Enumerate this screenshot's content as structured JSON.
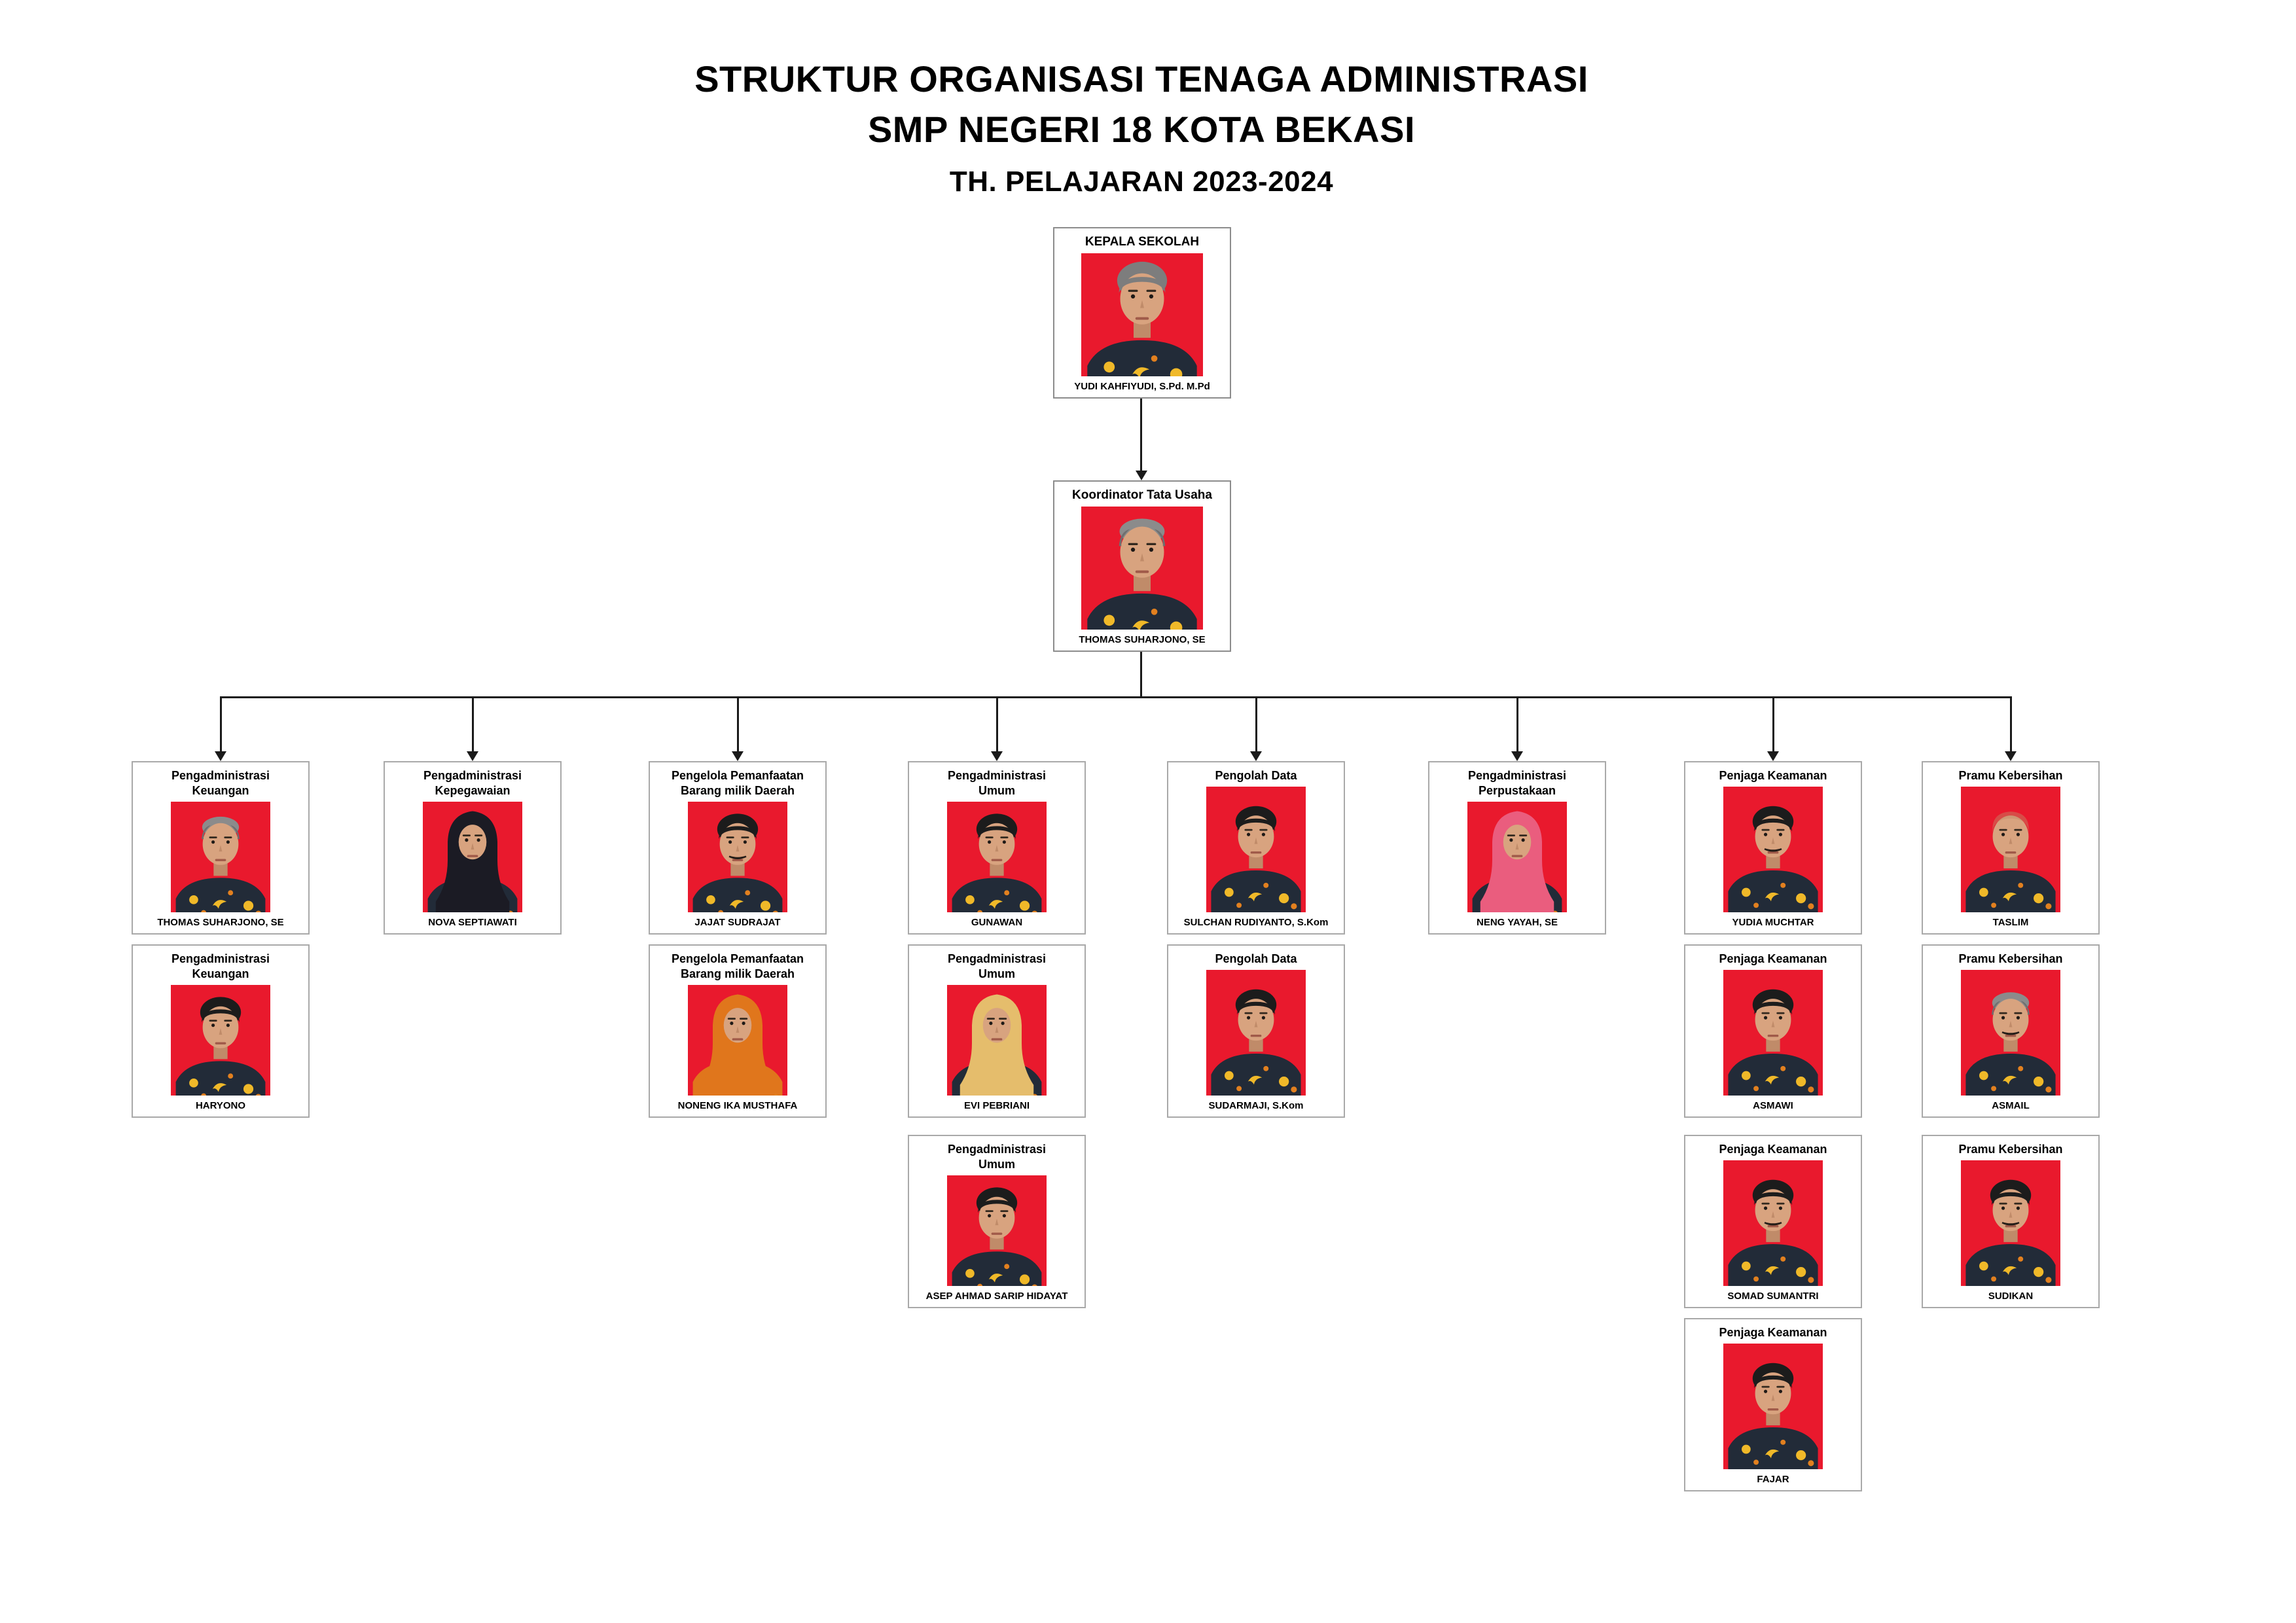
{
  "title": {
    "line1": "STRUKTUR ORGANISASI TENAGA ADMINISTRASI",
    "line2": "SMP NEGERI 18 KOTA BEKASI",
    "line3": "TH. PELAJARAN 2023-2024"
  },
  "colors": {
    "photo_bg": "#e9192d",
    "batik_shirt": "#222b38",
    "batik_accent": "#f0b929",
    "batik_accent2": "#e2801f",
    "connector": "#1a1a1a",
    "node_border": "#a9a9a9"
  },
  "org": {
    "kepala": {
      "role": "KEPALA SEKOLAH",
      "name": "YUDI KAHFIYUDI, S.Pd. M.Pd",
      "avatar": "male-gray"
    },
    "koordinator": {
      "role": "Koordinator Tata Usaha",
      "name": "THOMAS SUHARJONO, SE",
      "avatar": "male-balding"
    },
    "columns": [
      {
        "members": [
          {
            "role": "Pengadministrasi\nKeuangan",
            "name": "THOMAS SUHARJONO, SE",
            "avatar": "male-balding"
          },
          {
            "role": "Pengadministrasi\nKeuangan",
            "name": "HARYONO",
            "avatar": "male-black"
          }
        ]
      },
      {
        "members": [
          {
            "role": "Pengadministrasi\nKepegawaian",
            "name": "NOVA SEPTIAWATI",
            "avatar": "hijab-black"
          }
        ]
      },
      {
        "members": [
          {
            "role": "Pengelola Pemanfaatan\nBarang milik Daerah",
            "name": "JAJAT SUDRAJAT",
            "avatar": "male-black-mustache"
          },
          {
            "role": "Pengelola Pemanfaatan\nBarang milik Daerah",
            "name": "NONENG IKA MUSTHAFA",
            "avatar": "hijab-orange",
            "shirt": "#e0761c"
          }
        ]
      },
      {
        "members": [
          {
            "role": "Pengadministrasi\nUmum",
            "name": "GUNAWAN",
            "avatar": "male-black"
          },
          {
            "role": "Pengadministrasi\nUmum",
            "name": "EVI PEBRIANI",
            "avatar": "hijab-yellow"
          },
          {
            "role": "Pengadministrasi\nUmum",
            "name": "ASEP AHMAD SARIP HIDAYAT",
            "avatar": "male-black"
          }
        ]
      },
      {
        "members": [
          {
            "role": "Pengolah Data",
            "name": "SULCHAN RUDIYANTO, S.Kom",
            "avatar": "male-black"
          },
          {
            "role": "Pengolah Data",
            "name": "SUDARMAJI, S.Kom",
            "avatar": "male-black"
          }
        ]
      },
      {
        "members": [
          {
            "role": "Pengadministrasi\nPerpustakaan",
            "name": "NENG YAYAH, SE",
            "avatar": "hijab-pink"
          }
        ]
      },
      {
        "members": [
          {
            "role": "Penjaga Keamanan",
            "name": "YUDIA MUCHTAR",
            "avatar": "male-black-mustache"
          },
          {
            "role": "Penjaga Keamanan",
            "name": "ASMAWI",
            "avatar": "male-black"
          },
          {
            "role": "Penjaga Keamanan",
            "name": "SOMAD SUMANTRI",
            "avatar": "male-black-mustache"
          },
          {
            "role": "Penjaga Keamanan",
            "name": "FAJAR",
            "avatar": "male-black"
          }
        ]
      },
      {
        "members": [
          {
            "role": "Pramu Kebersihan",
            "name": "TASLIM",
            "avatar": "male-bald"
          },
          {
            "role": "Pramu Kebersihan",
            "name": "ASMAIL",
            "avatar": "male-balding-mustache"
          },
          {
            "role": "Pramu Kebersihan",
            "name": "SUDIKAN",
            "avatar": "male-black-mustache"
          }
        ]
      }
    ]
  }
}
